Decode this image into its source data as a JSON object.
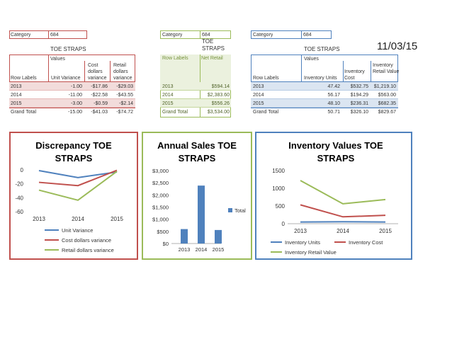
{
  "date": "11/03/15",
  "pivot1": {
    "filter_label": "Category",
    "filter_value": "684",
    "title": "TOE STRAPS",
    "values_label": "Values",
    "row_labels": "Row Labels",
    "headers": [
      "Unit Variance",
      "Cost dollars variance",
      "Retail dollars variance"
    ],
    "rows": [
      {
        "label": "2013",
        "cells": [
          "-1.00",
          "-$17.86",
          "-$29.03"
        ]
      },
      {
        "label": "2014",
        "cells": [
          "-11.00",
          "-$22.58",
          "-$43.55"
        ]
      },
      {
        "label": "2015",
        "cells": [
          "-3.00",
          "-$0.59",
          "-$2.14"
        ]
      }
    ],
    "total": {
      "label": "Grand Total",
      "cells": [
        "-15.00",
        "-$41.03",
        "-$74.72"
      ]
    },
    "color": "#c0504d"
  },
  "pivot2": {
    "filter_label": "Category",
    "filter_value": "684",
    "title": "TOE STRAPS",
    "row_labels": "Row Labels",
    "header": "Net Retail",
    "rows": [
      {
        "label": "2013",
        "value": "$594.14"
      },
      {
        "label": "2014",
        "value": "$2,383.60"
      },
      {
        "label": "2015",
        "value": "$556.26"
      }
    ],
    "total": {
      "label": "Grand Total",
      "value": "$3,534.00"
    },
    "color": "#9bbb59"
  },
  "pivot3": {
    "filter_label": "Category",
    "filter_value": "684",
    "title": "TOE STRAPS",
    "values_label": "Values",
    "row_labels": "Row Labels",
    "headers": [
      "Inventory Units",
      "Inventory Cost",
      "Inventory Retail Value"
    ],
    "rows": [
      {
        "label": "2013",
        "cells": [
          "47.42",
          "$532.75",
          "$1,219.10"
        ]
      },
      {
        "label": "2014",
        "cells": [
          "56.17",
          "$194.29",
          "$563.00"
        ]
      },
      {
        "label": "2015",
        "cells": [
          "48.10",
          "$236.31",
          "$682.35"
        ]
      }
    ],
    "total": {
      "label": "Grand Total",
      "cells": [
        "50.71",
        "$326.10",
        "$829.67"
      ]
    },
    "color": "#4f81bd"
  },
  "chart_data": [
    {
      "type": "line",
      "title": "Discrepancy TOE STRAPS",
      "categories": [
        "2013",
        "2014",
        "2015"
      ],
      "ylim": [
        -60,
        0
      ],
      "yticks": [
        "0",
        "-20",
        "-40",
        "-60"
      ],
      "series": [
        {
          "name": "Unit Variance",
          "values": [
            -1,
            -11,
            -3
          ],
          "color": "#4f81bd"
        },
        {
          "name": "Cost dollars variance",
          "values": [
            -17.86,
            -22.58,
            -0.59
          ],
          "color": "#c0504d"
        },
        {
          "name": "Retail dollars variance",
          "values": [
            -29.03,
            -43.55,
            -2.14
          ],
          "color": "#9bbb59"
        }
      ],
      "legend": "bottom",
      "border": "#c0504d"
    },
    {
      "type": "bar",
      "title": "Annual Sales TOE STRAPS",
      "categories": [
        "2013",
        "2014",
        "2015"
      ],
      "ylim": [
        0,
        3000
      ],
      "yticks": [
        "$0",
        "$500",
        "$1,000",
        "$1,500",
        "$2,000",
        "$2,500",
        "$3,000"
      ],
      "series": [
        {
          "name": "Total",
          "values": [
            594.14,
            2383.6,
            556.26
          ],
          "color": "#4f81bd"
        }
      ],
      "legend": "right",
      "border": "#9bbb59"
    },
    {
      "type": "line",
      "title": "Inventory Values TOE STRAPS",
      "categories": [
        "2013",
        "2014",
        "2015"
      ],
      "ylim": [
        0,
        1500
      ],
      "yticks": [
        "0",
        "500",
        "1000",
        "1500"
      ],
      "series": [
        {
          "name": "Inventory Units",
          "values": [
            47.42,
            56.17,
            48.1
          ],
          "color": "#4f81bd"
        },
        {
          "name": "Inventory Cost",
          "values": [
            532.75,
            194.29,
            236.31
          ],
          "color": "#c0504d"
        },
        {
          "name": "Inventory Retail Value",
          "values": [
            1219.1,
            563,
            682.35
          ],
          "color": "#9bbb59"
        }
      ],
      "legend": "bottom",
      "border": "#4f81bd"
    }
  ]
}
